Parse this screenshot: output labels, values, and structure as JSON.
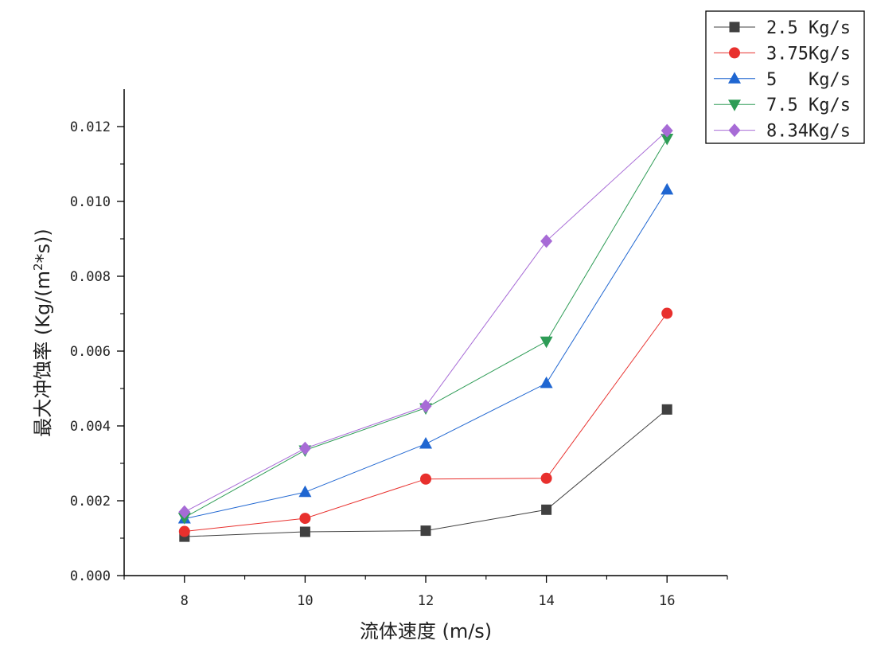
{
  "chart_data": {
    "type": "line",
    "xlabel": "流体速度 (m/s)",
    "ylabel_main": "最大冲蚀率 (Kg/(m",
    "ylabel_sup": "2",
    "ylabel_tail": "*s))",
    "x": [
      8,
      10,
      12,
      14,
      16
    ],
    "xlim": [
      7,
      17
    ],
    "ylim": [
      0,
      0.013
    ],
    "x_ticks": [
      "8",
      "10",
      "12",
      "14",
      "16"
    ],
    "y_ticks": [
      "0.000",
      "0.002",
      "0.004",
      "0.006",
      "0.008",
      "0.010",
      "0.012"
    ],
    "grid": false,
    "legend_position": "top-right",
    "series": [
      {
        "name": "2.5 Kg/s",
        "marker": "square",
        "color": "#404040",
        "values": [
          0.00104,
          0.00117,
          0.0012,
          0.00176,
          0.00444
        ]
      },
      {
        "name": "3.75Kg/s",
        "marker": "circle",
        "color": "#e8302d",
        "values": [
          0.00118,
          0.00153,
          0.00258,
          0.0026,
          0.00701
        ]
      },
      {
        "name": "5   Kg/s",
        "marker": "triangle-up",
        "color": "#1f66d1",
        "values": [
          0.00152,
          0.00223,
          0.00352,
          0.00514,
          0.01031
        ]
      },
      {
        "name": "7.5 Kg/s",
        "marker": "triangle-down",
        "color": "#2e9c56",
        "values": [
          0.00155,
          0.00335,
          0.00448,
          0.00626,
          0.01168
        ]
      },
      {
        "name": "8.34Kg/s",
        "marker": "diamond",
        "color": "#a76bd6",
        "values": [
          0.0017,
          0.0034,
          0.00453,
          0.00894,
          0.01189
        ]
      }
    ]
  }
}
